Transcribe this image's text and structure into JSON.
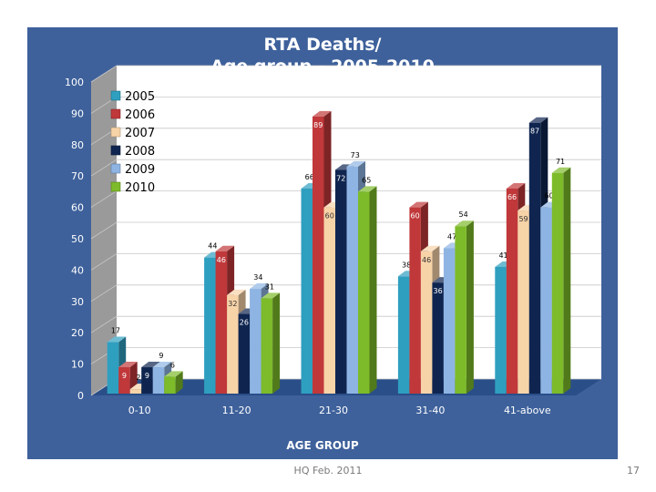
{
  "chart_data": {
    "type": "bar",
    "title_lines": [
      "RTA Deaths/",
      "Age group - 2005-2010"
    ],
    "xlabel": "AGE GROUP",
    "ylabel": "",
    "ylim": [
      0,
      100
    ],
    "yticks": [
      0,
      10,
      20,
      30,
      40,
      50,
      60,
      70,
      80,
      90,
      100
    ],
    "categories": [
      "0-10",
      "11-20",
      "21-30",
      "31-40",
      "41-above"
    ],
    "series": [
      {
        "name": "2005",
        "color": "#2f9fc0",
        "values": [
          17,
          44,
          66,
          38,
          41
        ]
      },
      {
        "name": "2006",
        "color": "#c0383a",
        "values": [
          9,
          46,
          89,
          60,
          66
        ]
      },
      {
        "name": "2007",
        "color": "#f7d3a8",
        "values": [
          2,
          32,
          60,
          46,
          59
        ]
      },
      {
        "name": "2008",
        "color": "#0f2550",
        "values": [
          9,
          26,
          72,
          36,
          87
        ]
      },
      {
        "name": "2009",
        "color": "#8eb4e3",
        "values": [
          9,
          34,
          73,
          47,
          60
        ]
      },
      {
        "name": "2010",
        "color": "#7dbb2a",
        "values": [
          6,
          31,
          65,
          54,
          71
        ]
      }
    ],
    "grid": true,
    "legend_position": "top-left"
  },
  "footer": {
    "text": "HQ Feb. 2011",
    "page_number": "17"
  }
}
